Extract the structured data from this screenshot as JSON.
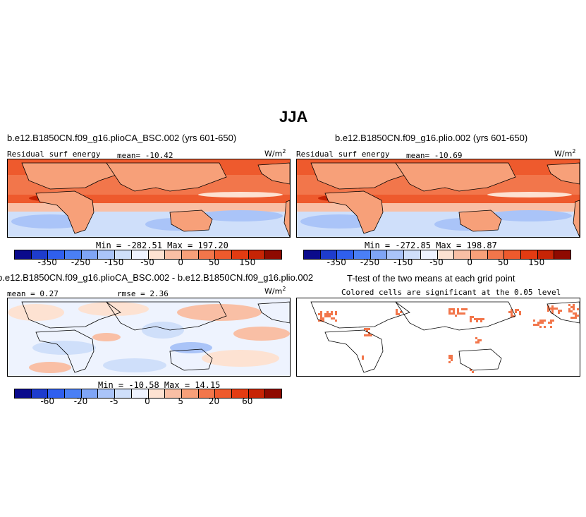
{
  "figure": {
    "season": "JJA",
    "panels": [
      {
        "title": "b.e12.B1850CN.f09_g16.plioCA_BSC.002 (yrs 601-650)",
        "variable": "Residual surf energy",
        "mean_label": "mean= -10.42",
        "units": "W/m",
        "units_exp": "2",
        "minmax": "Min = -282.51 Max = 197.20"
      },
      {
        "title": "b.e12.B1850CN.f09_g16.plio.002 (yrs 601-650)",
        "variable": "Residual surf energy",
        "mean_label": "mean= -10.69",
        "units": "W/m",
        "units_exp": "2",
        "minmax": "Min = -272.85 Max = 198.87"
      },
      {
        "title": "b.e12.B1850CN.f09_g16.plioCA_BSC.002 - b.e12.B1850CN.f09_g16.plio.002",
        "mean_label": "mean =  0.27",
        "rmse_label": "rmse =   2.36",
        "units": "W/m",
        "units_exp": "2",
        "minmax": "Min = -10.58 Max =  14.15"
      },
      {
        "title": "T-test of the two means at each grid point",
        "subtitle": "Colored cells are significant at the 0.05 level"
      }
    ],
    "colorbar_abs": {
      "labels": [
        "-350",
        "-250",
        "-150",
        "-50",
        "0",
        "50",
        "150"
      ]
    },
    "colorbar_diff": {
      "labels": [
        "-60",
        "-20",
        "-5",
        "0",
        "5",
        "20",
        "60"
      ]
    },
    "colors": {
      "scale": [
        "#0a0a8c",
        "#1e3ccd",
        "#2f5fee",
        "#4a7ff5",
        "#7fa5f5",
        "#aac4f8",
        "#cfdffa",
        "#eef3fe",
        "#fde2d2",
        "#f9bfa5",
        "#f7a079",
        "#f2764b",
        "#ee5a2d",
        "#e33b12",
        "#c72405",
        "#8f0a00"
      ],
      "ttest": "#f2764b"
    }
  },
  "chart_data": [
    {
      "type": "heatmap",
      "title": "b.e12.B1850CN.f09_g16.plioCA_BSC.002 (yrs 601-650)",
      "variable": "Residual surf energy",
      "season": "JJA",
      "units": "W/m2",
      "mean": -10.42,
      "min": -282.51,
      "max": 197.2,
      "contour_levels": [
        -350,
        -300,
        -250,
        -200,
        -150,
        -100,
        -50,
        -25,
        0,
        25,
        50,
        100,
        150,
        200
      ]
    },
    {
      "type": "heatmap",
      "title": "b.e12.B1850CN.f09_g16.plio.002 (yrs 601-650)",
      "variable": "Residual surf energy",
      "season": "JJA",
      "units": "W/m2",
      "mean": -10.69,
      "min": -272.85,
      "max": 198.87,
      "contour_levels": [
        -350,
        -300,
        -250,
        -200,
        -150,
        -100,
        -50,
        -25,
        0,
        25,
        50,
        100,
        150,
        200
      ]
    },
    {
      "type": "heatmap",
      "title": "b.e12.B1850CN.f09_g16.plioCA_BSC.002 - b.e12.B1850CN.f09_g16.plio.002",
      "units": "W/m2",
      "mean": 0.27,
      "rmse": 2.36,
      "min": -10.58,
      "max": 14.15,
      "contour_levels": [
        -60,
        -40,
        -20,
        -10,
        -5,
        -2,
        0,
        2,
        5,
        10,
        20,
        40,
        60
      ]
    },
    {
      "type": "heatmap",
      "title": "T-test of the two means at each grid point",
      "note": "Colored cells are significant at the 0.05 level"
    }
  ]
}
